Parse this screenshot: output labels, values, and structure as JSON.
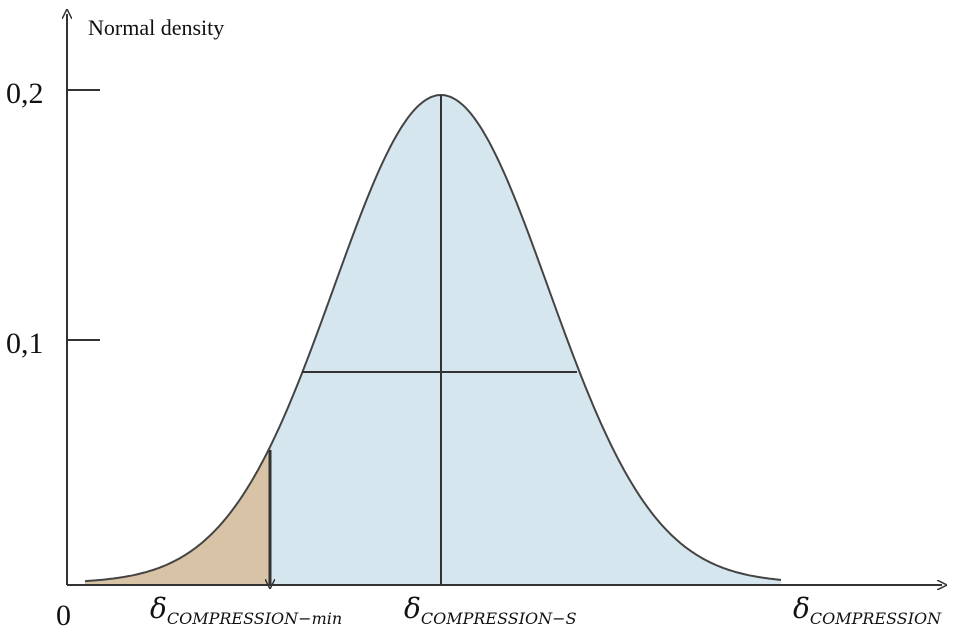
{
  "y_axis": {
    "label": "Normal density",
    "ticks": [
      "0,2",
      "0,1"
    ]
  },
  "origin_label": "0",
  "x_labels": [
    {
      "symbol": "δ",
      "subscript": "COMPRESSION−min"
    },
    {
      "symbol": "δ",
      "subscript": "COMPRESSION−S"
    },
    {
      "symbol": "δ",
      "subscript": "COMPRESSION"
    }
  ]
}
